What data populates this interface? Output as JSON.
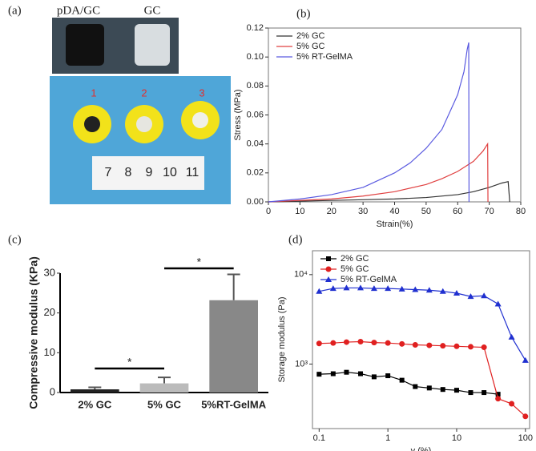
{
  "panel_labels": [
    "(a)",
    "(b)",
    "(c)",
    "(d)"
  ],
  "photo": {
    "sample_labels": [
      "pDA/GC",
      "GC"
    ],
    "well_numbers": [
      "1",
      "2",
      "3"
    ],
    "ruler": [
      "7",
      "8",
      "9",
      "10",
      "11"
    ]
  },
  "chart_data": [
    {
      "type": "line",
      "xlabel": "Strain(%)",
      "ylabel": "Stress (MPa)",
      "xlim": [
        0,
        80
      ],
      "xticks": [
        0,
        10,
        20,
        30,
        40,
        50,
        60,
        70,
        80
      ],
      "ylim": [
        0,
        0.12
      ],
      "yticks": [
        {
          "value": 0,
          "label": "0.00"
        },
        {
          "value": 0.02,
          "label": "0.02"
        },
        {
          "value": 0.04,
          "label": "0.04"
        },
        {
          "value": 0.06,
          "label": "0.06"
        },
        {
          "value": 0.08,
          "label": "0.08"
        },
        {
          "value": 0.1,
          "label": "0.10"
        },
        {
          "value": 0.12,
          "label": "0.12"
        }
      ],
      "legend": "upper-left",
      "series": [
        {
          "name": "2% GC",
          "color": "#333333",
          "x": [
            0,
            10,
            20,
            30,
            40,
            50,
            60,
            65,
            70,
            74,
            76,
            76.5
          ],
          "values": [
            0,
            0.0005,
            0.001,
            0.0015,
            0.002,
            0.003,
            0.005,
            0.007,
            0.01,
            0.013,
            0.014,
            0
          ]
        },
        {
          "name": "5% GC",
          "color": "#e04040",
          "x": [
            0,
            10,
            20,
            30,
            40,
            50,
            55,
            60,
            65,
            68,
            69.5,
            69.6
          ],
          "values": [
            0,
            0.001,
            0.002,
            0.004,
            0.007,
            0.012,
            0.016,
            0.021,
            0.028,
            0.035,
            0.04,
            0
          ]
        },
        {
          "name": "5% RT-GelMA",
          "color": "#5a5ae0",
          "x": [
            0,
            10,
            20,
            30,
            40,
            45,
            50,
            55,
            60,
            62,
            63,
            63.5,
            63.6
          ],
          "values": [
            0,
            0.002,
            0.005,
            0.01,
            0.02,
            0.027,
            0.037,
            0.05,
            0.074,
            0.09,
            0.105,
            0.11,
            0
          ]
        }
      ]
    },
    {
      "type": "bar",
      "ylabel": "Compressive modulus (KPa)",
      "categories": [
        "2% GC",
        "5% GC",
        "5%RT-GelMA"
      ],
      "values": [
        0.8,
        2.3,
        23.2
      ],
      "errors": [
        0.5,
        1.5,
        6.5
      ],
      "colors": [
        "#222222",
        "#bbbbbb",
        "#888888"
      ],
      "ylim": [
        0,
        30
      ],
      "yticks": [
        0,
        10,
        20,
        30
      ],
      "annotations": [
        "*",
        "*"
      ]
    },
    {
      "type": "line",
      "xlabel": "γ (%)",
      "ylabel": "Storage modulus (Pa)",
      "xlog": true,
      "ylog": true,
      "legend": "upper-left",
      "xlim": [
        0.08,
        115
      ],
      "xticks": [
        0.1,
        1,
        10,
        100
      ],
      "ylim": [
        190,
        18500
      ],
      "yticks": [
        {
          "value": 1000,
          "label": "10³"
        },
        {
          "value": 10000,
          "label": "10⁴"
        }
      ],
      "x": [
        0.1,
        0.16,
        0.25,
        0.4,
        0.63,
        1,
        1.6,
        2.5,
        4,
        6.3,
        10,
        16,
        25,
        40,
        63,
        100
      ],
      "series": [
        {
          "name": "2% GC",
          "color": "#000000",
          "marker": "square",
          "values": [
            770,
            780,
            810,
            780,
            720,
            740,
            660,
            560,
            540,
            520,
            510,
            480,
            480,
            460,
            null,
            null
          ]
        },
        {
          "name": "5% GC",
          "color": "#e02020",
          "marker": "circle",
          "values": [
            1700,
            1720,
            1760,
            1780,
            1740,
            1720,
            1680,
            1640,
            1620,
            1600,
            1580,
            1560,
            1540,
            410,
            360,
            260
          ]
        },
        {
          "name": "5% RT-GelMA",
          "color": "#2030d0",
          "marker": "triangle",
          "values": [
            6500,
            7000,
            7100,
            7100,
            7000,
            7000,
            6900,
            6800,
            6700,
            6500,
            6200,
            5700,
            5800,
            4700,
            2000,
            1100
          ]
        }
      ]
    }
  ]
}
